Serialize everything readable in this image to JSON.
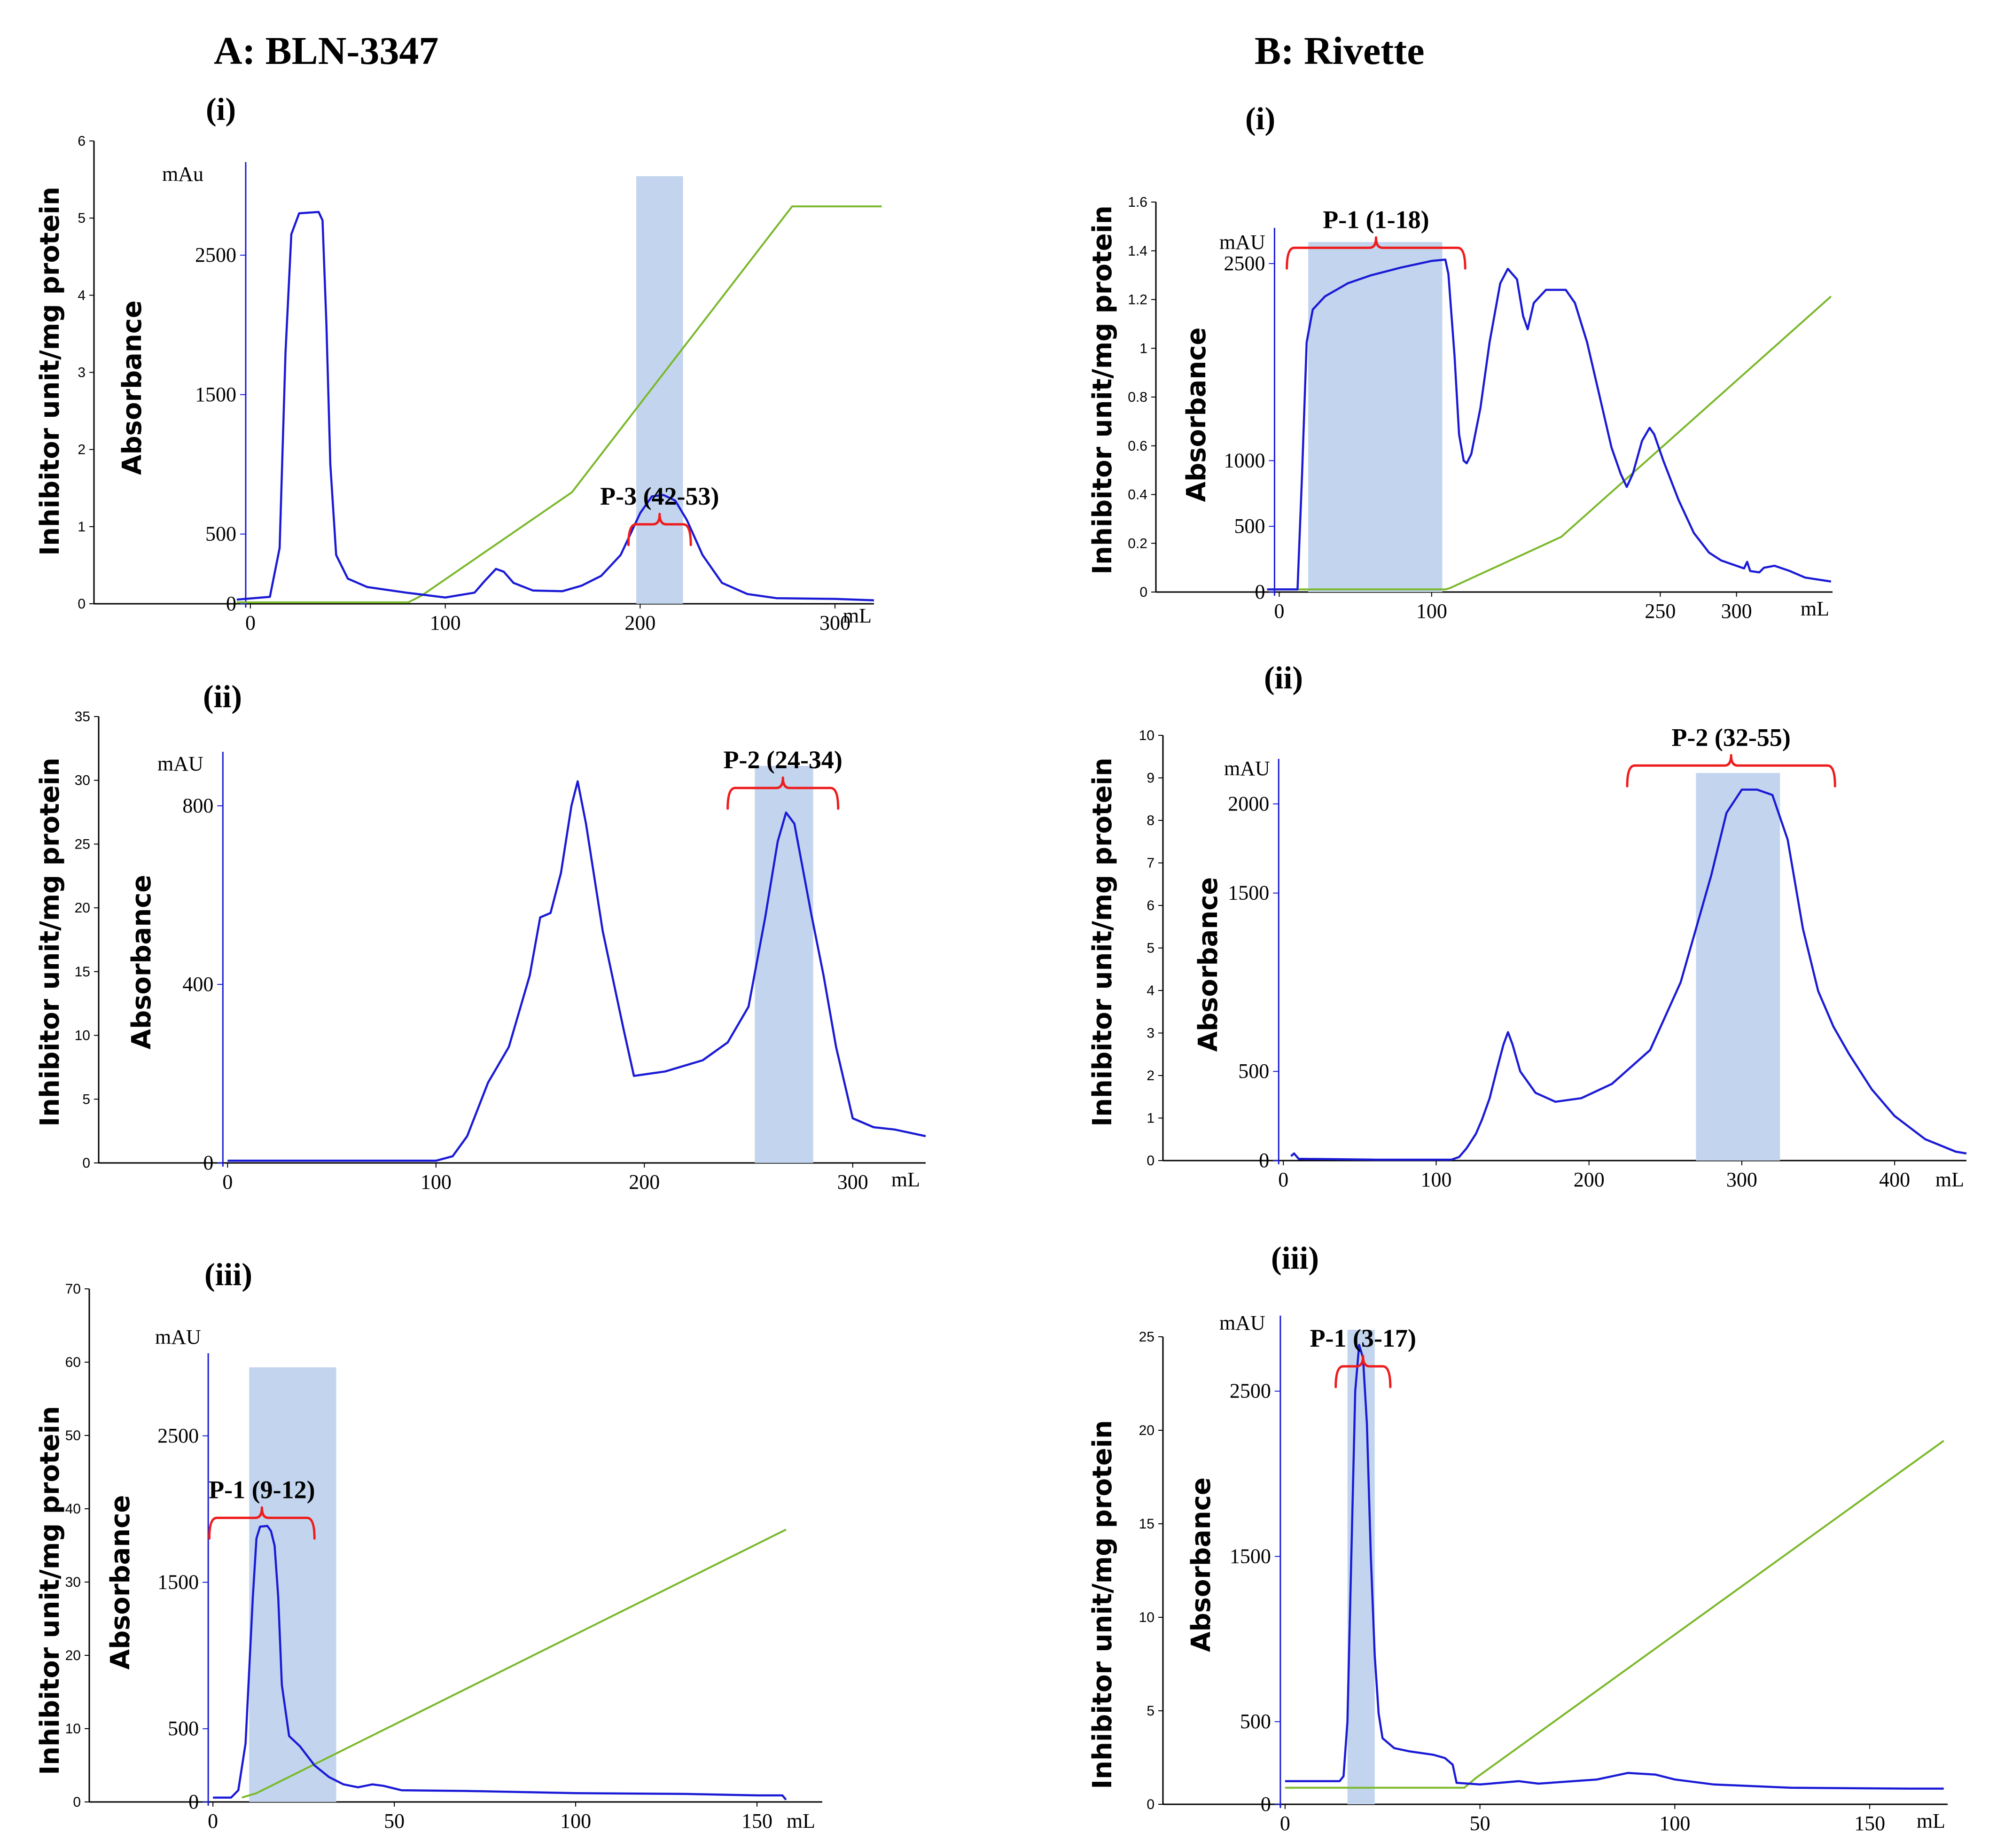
{
  "figure": {
    "column_a_title": "A: BLN-3347",
    "column_b_title": "B: Rivette"
  },
  "colors": {
    "absorbance_curve": "#1a1ad6",
    "gradient_line": "#7ab82a",
    "fraction_shade": "#c3d5ee",
    "peak_bracket": "#ee1c1c",
    "axis": "#1a1ad6",
    "outer_axis": "#000000"
  },
  "chart_data": [
    {
      "id": "A-i",
      "panel_label": "(i)",
      "type": "line",
      "title": "",
      "xlabel": "mL",
      "ylabel": "Absorbance",
      "left_ylabel": "Inhibitor unit/mg protein",
      "mau_label": "mAu",
      "xlim": [
        -20,
        320
      ],
      "ylim": [
        0,
        3100
      ],
      "ticks_x": [
        0,
        100,
        200,
        300
      ],
      "ticks_y": [
        0,
        500,
        1500,
        2500
      ],
      "left_ylim": [
        0,
        6
      ],
      "left_ticks": [
        0,
        1,
        2,
        3,
        4,
        5,
        6
      ],
      "shade_range": [
        198,
        222
      ],
      "peak_label": "P-3 (42-53)",
      "bracket_range": [
        194,
        226
      ],
      "bracket_y": 570,
      "absorbance": [
        [
          -7,
          30
        ],
        [
          10,
          50
        ],
        [
          15,
          400
        ],
        [
          18,
          1800
        ],
        [
          21,
          2650
        ],
        [
          25,
          2800
        ],
        [
          35,
          2810
        ],
        [
          37,
          2750
        ],
        [
          39,
          2000
        ],
        [
          41,
          1000
        ],
        [
          44,
          350
        ],
        [
          50,
          180
        ],
        [
          60,
          120
        ],
        [
          80,
          80
        ],
        [
          100,
          45
        ],
        [
          115,
          80
        ],
        [
          120,
          160
        ],
        [
          126,
          250
        ],
        [
          130,
          230
        ],
        [
          135,
          150
        ],
        [
          145,
          95
        ],
        [
          160,
          90
        ],
        [
          170,
          130
        ],
        [
          180,
          200
        ],
        [
          190,
          350
        ],
        [
          200,
          650
        ],
        [
          206,
          770
        ],
        [
          212,
          780
        ],
        [
          218,
          740
        ],
        [
          224,
          600
        ],
        [
          232,
          350
        ],
        [
          242,
          150
        ],
        [
          255,
          70
        ],
        [
          270,
          40
        ],
        [
          300,
          35
        ],
        [
          320,
          25
        ]
      ],
      "gradient": [
        [
          -7,
          10
        ],
        [
          81,
          10
        ],
        [
          88,
          60
        ],
        [
          165,
          800
        ],
        [
          278,
          2850
        ],
        [
          324,
          2850
        ]
      ]
    },
    {
      "id": "A-ii",
      "panel_label": "(ii)",
      "type": "line",
      "title": "",
      "xlabel": "mL",
      "ylabel": "Absorbance",
      "left_ylabel": "Inhibitor unit/mg protein",
      "mau_label": "mAU",
      "xlim": [
        -10,
        335
      ],
      "ylim": [
        0,
        900
      ],
      "ticks_x": [
        0,
        100,
        200,
        300
      ],
      "ticks_y": [
        0,
        400,
        800
      ],
      "left_ylim": [
        0,
        35
      ],
      "left_ticks": [
        0,
        5,
        10,
        15,
        20,
        25,
        30,
        35
      ],
      "shade_range": [
        253,
        281
      ],
      "peak_label": "P-2 (24-34)",
      "bracket_range": [
        240,
        293
      ],
      "bracket_y": 840,
      "absorbance": [
        [
          0,
          5
        ],
        [
          100,
          5
        ],
        [
          108,
          15
        ],
        [
          115,
          60
        ],
        [
          125,
          180
        ],
        [
          135,
          260
        ],
        [
          145,
          420
        ],
        [
          150,
          550
        ],
        [
          155,
          560
        ],
        [
          160,
          650
        ],
        [
          165,
          800
        ],
        [
          168,
          855
        ],
        [
          172,
          760
        ],
        [
          180,
          520
        ],
        [
          190,
          300
        ],
        [
          195,
          195
        ],
        [
          210,
          205
        ],
        [
          228,
          230
        ],
        [
          240,
          270
        ],
        [
          250,
          350
        ],
        [
          258,
          550
        ],
        [
          264,
          720
        ],
        [
          268,
          785
        ],
        [
          272,
          760
        ],
        [
          280,
          560
        ],
        [
          286,
          420
        ],
        [
          292,
          260
        ],
        [
          300,
          100
        ],
        [
          310,
          80
        ],
        [
          320,
          75
        ],
        [
          335,
          60
        ]
      ],
      "gradient": []
    },
    {
      "id": "A-iii",
      "panel_label": "(iii)",
      "type": "line",
      "title": "",
      "xlabel": "mL",
      "ylabel": "Absorbance",
      "left_ylabel": "Inhibitor unit/mg protein",
      "mau_label": "mAU",
      "xlim": [
        -3,
        168
      ],
      "ylim": [
        0,
        3000
      ],
      "ticks_x": [
        0,
        50,
        100,
        150
      ],
      "ticks_y": [
        0,
        500,
        1500,
        2500
      ],
      "left_ylim": [
        0,
        70
      ],
      "left_ticks": [
        0,
        10,
        20,
        30,
        40,
        50,
        60,
        70
      ],
      "shade_range": [
        10,
        34
      ],
      "peak_label": "P-1 (9-12)",
      "bracket_range": [
        -1,
        28
      ],
      "bracket_y": 1940,
      "absorbance": [
        [
          0,
          30
        ],
        [
          5,
          30
        ],
        [
          7,
          80
        ],
        [
          9,
          400
        ],
        [
          11,
          1400
        ],
        [
          12,
          1800
        ],
        [
          13,
          1880
        ],
        [
          15,
          1885
        ],
        [
          16,
          1850
        ],
        [
          17,
          1750
        ],
        [
          18,
          1400
        ],
        [
          19,
          800
        ],
        [
          21,
          450
        ],
        [
          24,
          380
        ],
        [
          28,
          250
        ],
        [
          32,
          170
        ],
        [
          36,
          120
        ],
        [
          40,
          100
        ],
        [
          44,
          120
        ],
        [
          47,
          110
        ],
        [
          52,
          80
        ],
        [
          70,
          75
        ],
        [
          100,
          60
        ],
        [
          130,
          55
        ],
        [
          150,
          45
        ],
        [
          157,
          45
        ],
        [
          158,
          15
        ]
      ],
      "gradient": [
        [
          8,
          30
        ],
        [
          12,
          60
        ],
        [
          158,
          1860
        ]
      ]
    },
    {
      "id": "B-i",
      "panel_label": "(i)",
      "type": "line",
      "title": "",
      "xlabel": "mL",
      "ylabel": "Absorbance",
      "left_ylabel": "Inhibitor unit/mg protein",
      "mau_label": "mAU",
      "xlim": [
        -10,
        363
      ],
      "ylim": [
        0,
        2700
      ],
      "ticks_x": [
        0,
        100,
        250,
        300
      ],
      "ticks_y": [
        0,
        500,
        1000,
        2500
      ],
      "left_ylim": [
        0,
        1.6
      ],
      "left_ticks": [
        0,
        0.2,
        0.4,
        0.6,
        0.8,
        1,
        1.2,
        1.4,
        1.6
      ],
      "shade_range": [
        19,
        107
      ],
      "peak_label": "P-1 (1-18)",
      "bracket_range": [
        5,
        122
      ],
      "bracket_y": 2620,
      "absorbance": [
        [
          -8,
          20
        ],
        [
          12,
          20
        ],
        [
          15,
          900
        ],
        [
          18,
          1900
        ],
        [
          22,
          2150
        ],
        [
          30,
          2250
        ],
        [
          45,
          2350
        ],
        [
          60,
          2410
        ],
        [
          80,
          2470
        ],
        [
          100,
          2520
        ],
        [
          109,
          2530
        ],
        [
          111,
          2420
        ],
        [
          115,
          1800
        ],
        [
          118,
          1200
        ],
        [
          121,
          1000
        ],
        [
          123,
          980
        ],
        [
          126,
          1050
        ],
        [
          132,
          1400
        ],
        [
          138,
          1900
        ],
        [
          145,
          2350
        ],
        [
          150,
          2460
        ],
        [
          156,
          2380
        ],
        [
          160,
          2100
        ],
        [
          163,
          2000
        ],
        [
          167,
          2200
        ],
        [
          175,
          2300
        ],
        [
          188,
          2300
        ],
        [
          194,
          2200
        ],
        [
          202,
          1900
        ],
        [
          210,
          1500
        ],
        [
          218,
          1100
        ],
        [
          224,
          900
        ],
        [
          228,
          800
        ],
        [
          232,
          900
        ],
        [
          238,
          1150
        ],
        [
          243,
          1250
        ],
        [
          246,
          1200
        ],
        [
          252,
          1000
        ],
        [
          262,
          700
        ],
        [
          272,
          450
        ],
        [
          282,
          300
        ],
        [
          290,
          240
        ],
        [
          300,
          200
        ],
        [
          305,
          180
        ],
        [
          307,
          230
        ],
        [
          309,
          160
        ],
        [
          315,
          150
        ],
        [
          318,
          185
        ],
        [
          325,
          200
        ],
        [
          335,
          160
        ],
        [
          345,
          110
        ],
        [
          362,
          80
        ]
      ],
      "gradient": [
        [
          -8,
          20
        ],
        [
          109,
          20
        ],
        [
          112,
          30
        ],
        [
          185,
          420
        ],
        [
          362,
          2250
        ]
      ]
    },
    {
      "id": "B-ii",
      "panel_label": "(ii)",
      "type": "line",
      "title": "",
      "xlabel": "mL",
      "ylabel": "Absorbance",
      "left_ylabel": "Inhibitor unit/mg protein",
      "mau_label": "mAU",
      "xlim": [
        -5,
        447
      ],
      "ylim": [
        0,
        2200
      ],
      "ticks_x": [
        0,
        100,
        200,
        300,
        400
      ],
      "ticks_y": [
        0,
        500,
        1500,
        2000
      ],
      "left_ylim": [
        0,
        10
      ],
      "left_ticks": [
        0,
        1,
        2,
        3,
        4,
        5,
        6,
        7,
        8,
        9,
        10
      ],
      "shade_range": [
        270,
        325
      ],
      "peak_label": "P-2 (32-55)",
      "bracket_range": [
        225,
        361
      ],
      "bracket_y": 2215,
      "absorbance": [
        [
          5,
          25
        ],
        [
          7,
          40
        ],
        [
          10,
          10
        ],
        [
          60,
          5
        ],
        [
          110,
          5
        ],
        [
          115,
          20
        ],
        [
          120,
          70
        ],
        [
          126,
          150
        ],
        [
          130,
          230
        ],
        [
          135,
          350
        ],
        [
          140,
          520
        ],
        [
          144,
          650
        ],
        [
          147,
          720
        ],
        [
          150,
          650
        ],
        [
          155,
          500
        ],
        [
          165,
          380
        ],
        [
          178,
          330
        ],
        [
          195,
          350
        ],
        [
          215,
          430
        ],
        [
          240,
          620
        ],
        [
          260,
          1000
        ],
        [
          270,
          1300
        ],
        [
          280,
          1600
        ],
        [
          290,
          1950
        ],
        [
          300,
          2080
        ],
        [
          310,
          2080
        ],
        [
          320,
          2050
        ],
        [
          330,
          1800
        ],
        [
          340,
          1300
        ],
        [
          350,
          950
        ],
        [
          360,
          750
        ],
        [
          370,
          600
        ],
        [
          385,
          400
        ],
        [
          400,
          250
        ],
        [
          420,
          120
        ],
        [
          440,
          50
        ],
        [
          447,
          40
        ]
      ],
      "gradient": []
    },
    {
      "id": "B-iii",
      "panel_label": "(iii)",
      "type": "line",
      "title": "",
      "xlabel": "mL",
      "ylabel": "Absorbance",
      "left_ylabel": "Inhibitor unit/mg protein",
      "mau_label": "mAU",
      "xlim": [
        -3,
        170
      ],
      "ylim": [
        0,
        2900
      ],
      "ticks_x": [
        0,
        50,
        100,
        150
      ],
      "ticks_y": [
        0,
        500,
        1500,
        2500
      ],
      "left_ylim": [
        0,
        25
      ],
      "left_ticks": [
        0,
        5,
        10,
        15,
        20,
        25
      ],
      "shade_range": [
        16,
        23
      ],
      "peak_label": "P-1 (3-17)",
      "bracket_range": [
        13,
        27
      ],
      "bracket_y": 2650,
      "absorbance": [
        [
          0,
          140
        ],
        [
          10,
          140
        ],
        [
          14,
          140
        ],
        [
          15,
          170
        ],
        [
          16,
          500
        ],
        [
          17,
          1500
        ],
        [
          18,
          2500
        ],
        [
          19,
          2780
        ],
        [
          20,
          2700
        ],
        [
          21,
          2300
        ],
        [
          22,
          1500
        ],
        [
          23,
          900
        ],
        [
          24,
          550
        ],
        [
          25,
          400
        ],
        [
          28,
          340
        ],
        [
          32,
          320
        ],
        [
          38,
          300
        ],
        [
          41,
          280
        ],
        [
          43,
          240
        ],
        [
          44,
          130
        ],
        [
          50,
          120
        ],
        [
          60,
          140
        ],
        [
          65,
          125
        ],
        [
          80,
          150
        ],
        [
          88,
          190
        ],
        [
          95,
          180
        ],
        [
          100,
          150
        ],
        [
          110,
          120
        ],
        [
          130,
          100
        ],
        [
          160,
          95
        ],
        [
          169,
          95
        ]
      ],
      "gradient": [
        [
          0,
          100
        ],
        [
          46,
          100
        ],
        [
          49,
          160
        ],
        [
          169,
          2200
        ]
      ]
    }
  ]
}
